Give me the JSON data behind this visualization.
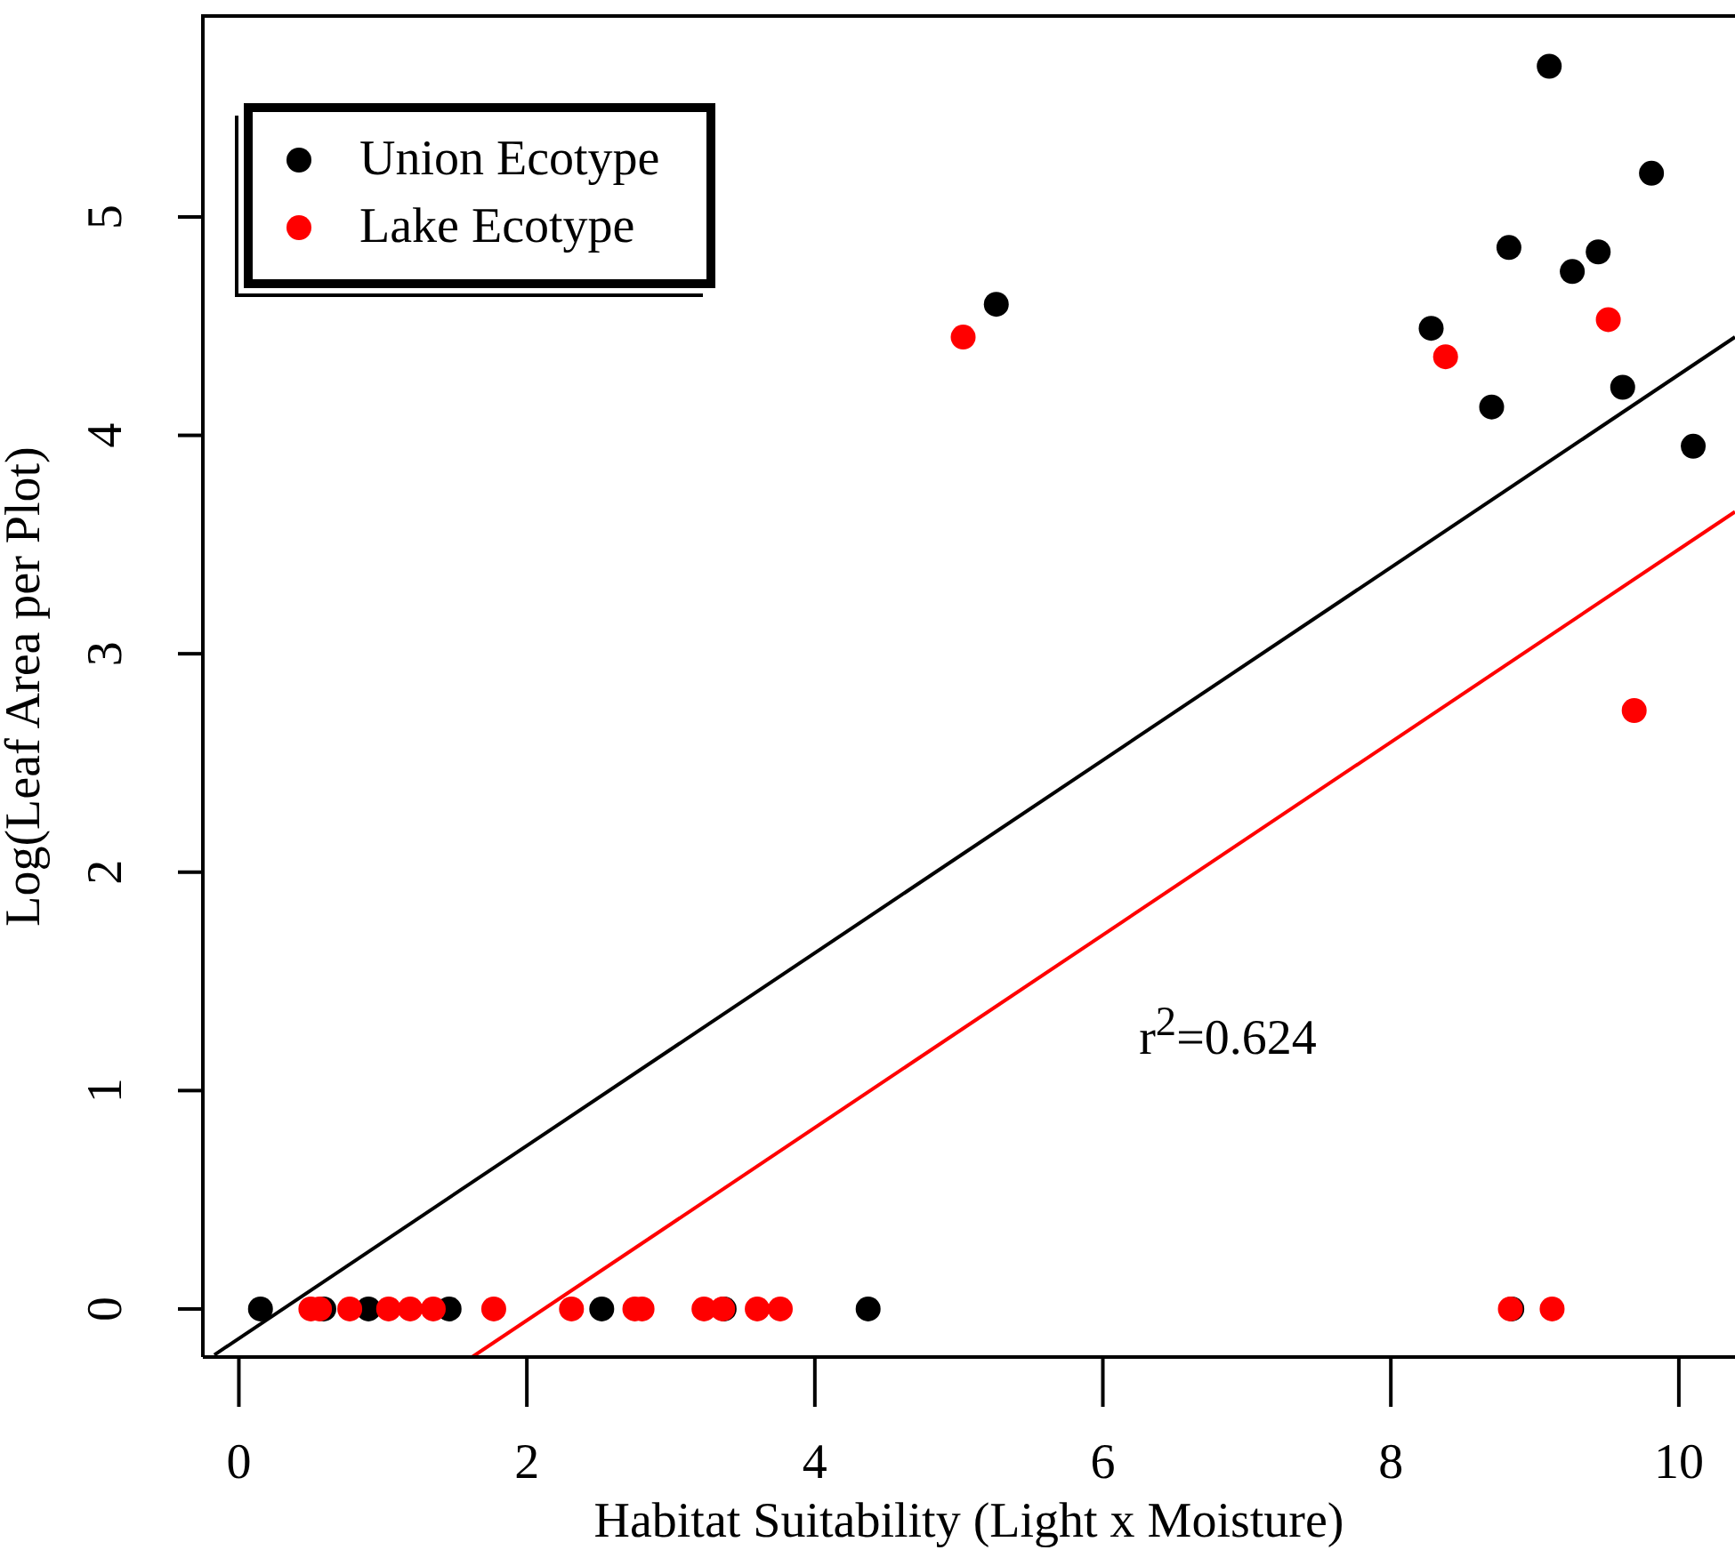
{
  "chart_data": {
    "type": "scatter",
    "xlabel": "Habitat Suitability (Light x Moisture)",
    "ylabel": "Log(Leaf Area per Plot)",
    "xlim": [
      -0.25,
      10.39
    ],
    "ylim": [
      -0.22,
      5.92
    ],
    "xticks": [
      0,
      2,
      4,
      6,
      8,
      10
    ],
    "yticks": [
      0,
      1,
      2,
      3,
      4,
      5
    ],
    "legend": "top left",
    "marker": "circle",
    "annotations": [
      "r$^{2}$=0.624"
    ],
    "series": [
      {
        "name": "Union Ecotype",
        "color": "#000000",
        "x": [
          0.15,
          0.59,
          0.9,
          1.46,
          2.52,
          3.37,
          4.37,
          8.84,
          9.1,
          9.81,
          8.82,
          9.44,
          9.26,
          5.26,
          8.28,
          8.7,
          9.61,
          10.1
        ],
        "values": [
          0,
          0,
          0,
          0,
          0,
          0,
          0,
          0,
          5.69,
          5.2,
          4.86,
          4.84,
          4.75,
          4.6,
          4.49,
          4.13,
          4.22,
          3.95
        ]
      },
      {
        "name": "Lake Ecotype",
        "color": "#ff0000",
        "x": [
          0.5,
          0.56,
          0.77,
          1.04,
          1.19,
          1.35,
          1.77,
          2.31,
          2.75,
          2.8,
          3.23,
          3.36,
          3.6,
          3.76,
          8.83,
          9.12,
          5.03,
          8.38,
          9.51,
          9.69
        ],
        "values": [
          0,
          0,
          0,
          0,
          0,
          0,
          0,
          0,
          0,
          0,
          0,
          0,
          0,
          0,
          0,
          0,
          4.45,
          4.36,
          4.53,
          2.74
        ]
      },
      {
        "type": "line",
        "marker": "none",
        "color": "#000000",
        "x": [
          -0.17,
          10.39
        ],
        "values": [
          -0.21,
          4.45
        ]
      },
      {
        "type": "line",
        "marker": "none",
        "color": "#ff0000",
        "x": [
          1.62,
          10.39
        ],
        "values": [
          -0.22,
          3.65
        ]
      }
    ]
  }
}
